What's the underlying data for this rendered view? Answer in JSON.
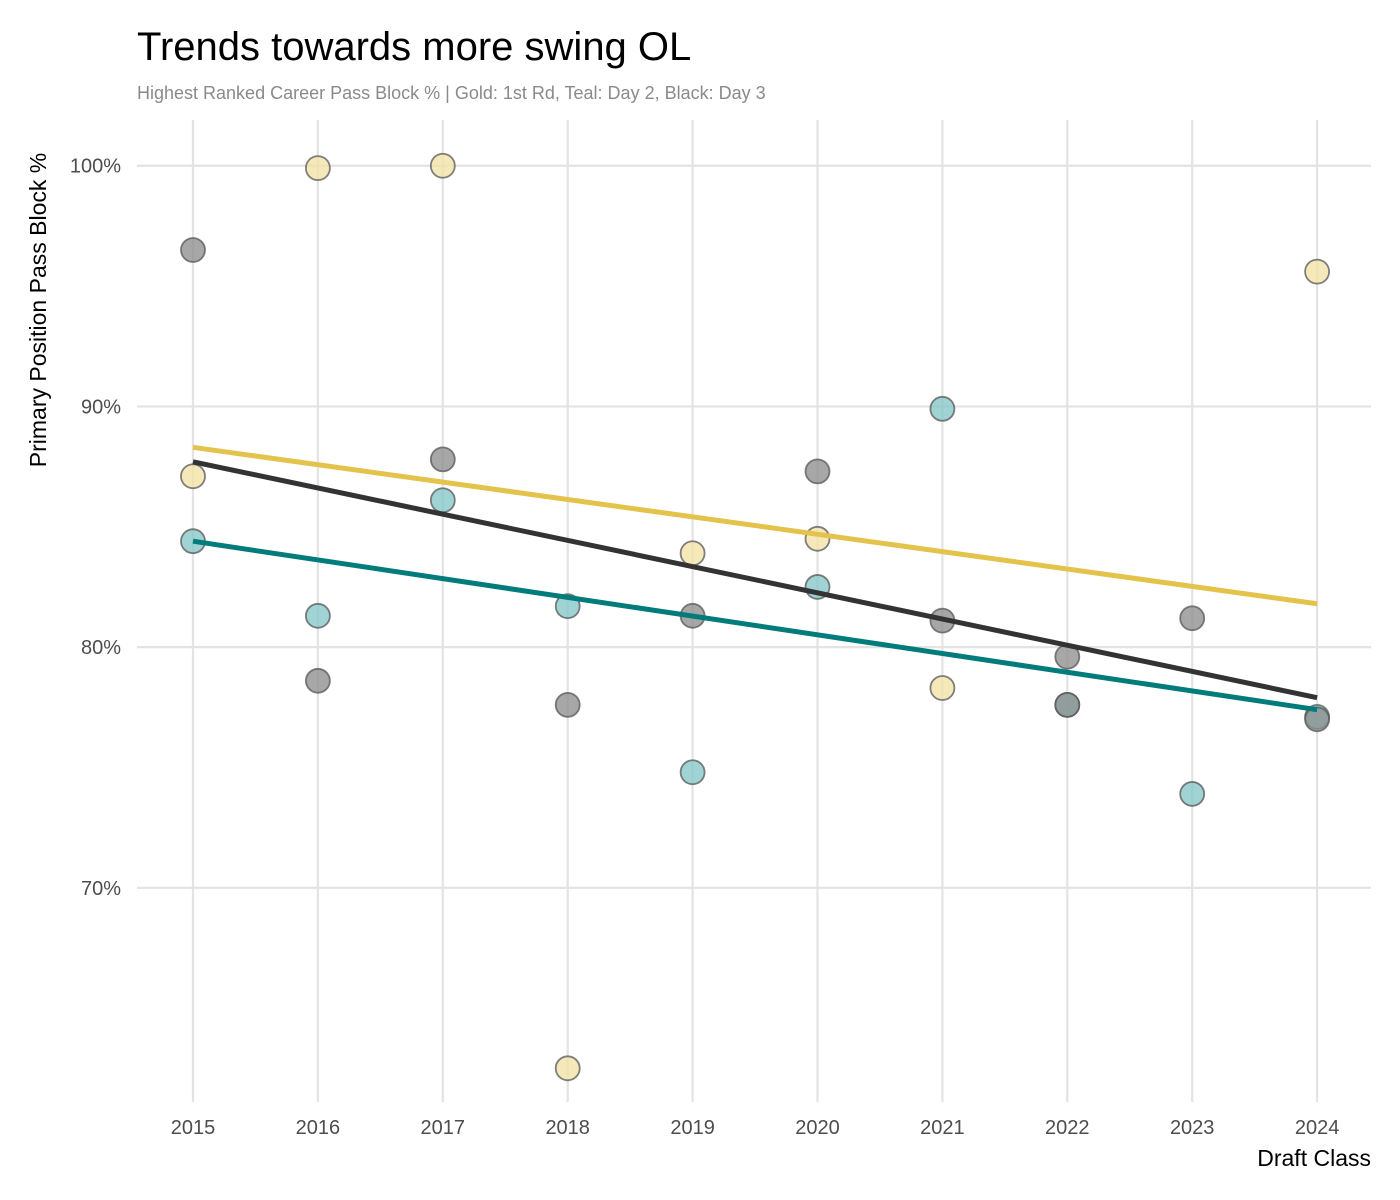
{
  "chart_data": {
    "type": "scatter",
    "title": "Trends towards more swing OL",
    "subtitle": "Highest Ranked Career Pass Block % | Gold: 1st Rd, Teal: Day 2, Black: Day 3",
    "xlabel": "Draft Class",
    "ylabel": "Primary Position Pass Block %",
    "x_categories": [
      "2015",
      "2016",
      "2017",
      "2018",
      "2019",
      "2020",
      "2021",
      "2022",
      "2023",
      "2024"
    ],
    "y_ticks": [
      70,
      80,
      90,
      100
    ],
    "y_tick_labels": [
      "70%",
      "80%",
      "90%",
      "100%"
    ],
    "ylim": [
      61.1,
      101.9
    ],
    "grid": true,
    "series": [
      {
        "name": "1st Rd",
        "color": "#e3c34b",
        "point_fill": "#f2e3a6",
        "points": [
          {
            "x": "2015",
            "y": 87.1
          },
          {
            "x": "2016",
            "y": 99.9
          },
          {
            "x": "2017",
            "y": 100.0
          },
          {
            "x": "2018",
            "y": 62.5
          },
          {
            "x": "2019",
            "y": 83.9
          },
          {
            "x": "2020",
            "y": 84.5
          },
          {
            "x": "2021",
            "y": 78.3
          },
          {
            "x": "2024",
            "y": 95.6
          }
        ],
        "trend": {
          "start": 88.3,
          "end": 81.8
        }
      },
      {
        "name": "Day 2",
        "color": "#027b7b",
        "point_fill": "#85c6c6",
        "points": [
          {
            "x": "2015",
            "y": 84.4
          },
          {
            "x": "2016",
            "y": 81.3
          },
          {
            "x": "2017",
            "y": 86.1
          },
          {
            "x": "2018",
            "y": 81.7
          },
          {
            "x": "2019",
            "y": 74.8
          },
          {
            "x": "2020",
            "y": 82.5
          },
          {
            "x": "2021",
            "y": 89.9
          },
          {
            "x": "2022",
            "y": 77.6
          },
          {
            "x": "2023",
            "y": 73.9
          },
          {
            "x": "2024",
            "y": 77.1
          }
        ],
        "trend": {
          "start": 84.4,
          "end": 77.4
        }
      },
      {
        "name": "Day 3",
        "color": "#333333",
        "point_fill": "#8e8e8e",
        "points": [
          {
            "x": "2015",
            "y": 96.5
          },
          {
            "x": "2016",
            "y": 78.6
          },
          {
            "x": "2017",
            "y": 87.8
          },
          {
            "x": "2018",
            "y": 77.6
          },
          {
            "x": "2019",
            "y": 81.3
          },
          {
            "x": "2020",
            "y": 87.3
          },
          {
            "x": "2021",
            "y": 81.1
          },
          {
            "x": "2022",
            "y": 79.6
          },
          {
            "x": "2022",
            "y": 77.6
          },
          {
            "x": "2023",
            "y": 81.2
          },
          {
            "x": "2024",
            "y": 77.0
          }
        ],
        "trend": {
          "start": 87.7,
          "end": 77.9
        }
      }
    ]
  }
}
